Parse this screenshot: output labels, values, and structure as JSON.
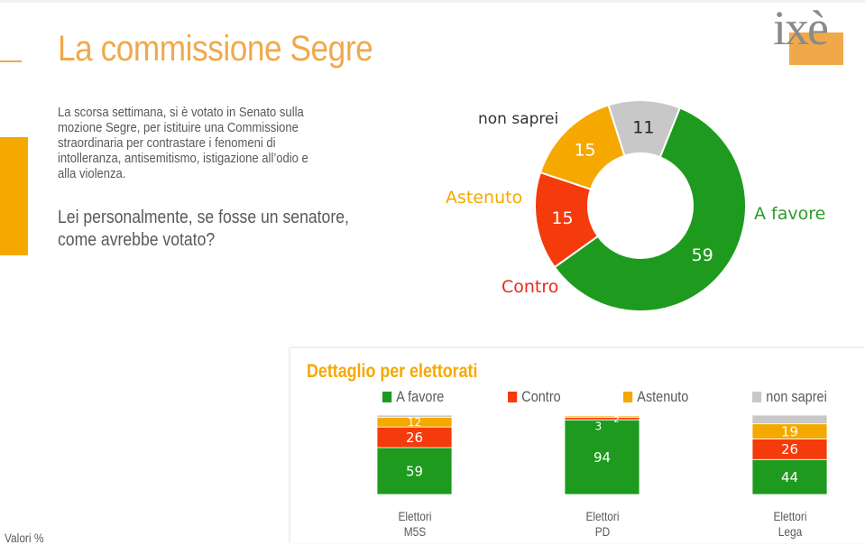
{
  "title": "La commissione Segre",
  "intro": "La scorsa settimana, si è votato in Senato sulla mozione Segre, per istituire una Commissione straordinaria per contrastare i fenomeni di intolleranza, antisemitismo, istigazione all’odio e alla violenza.",
  "question": "Lei personalmente, se fosse un senatore, come avrebbe votato?",
  "logo_text": "ixè",
  "colors": {
    "accent": "#f0a94a",
    "a_favore": "#1e9a1e",
    "contro": "#f53a0c",
    "astenuto": "#f5a800",
    "non_saprei": "#c8c8c8"
  },
  "footnote": "Valori %",
  "chart_data": [
    {
      "type": "pie",
      "donut": true,
      "categories": [
        "A favore",
        "Contro",
        "Astenuto",
        "non saprei"
      ],
      "values": [
        59,
        15,
        15,
        11
      ]
    },
    {
      "type": "bar",
      "stacked": true,
      "title": "Dettaglio per elettorati",
      "categories": [
        "Elettori M5S",
        "Elettori PD",
        "Elettori Lega"
      ],
      "category_lines": [
        [
          "Elettori",
          "M5S"
        ],
        [
          "Elettori",
          "PD"
        ],
        [
          "Elettori",
          "Lega"
        ]
      ],
      "series": [
        {
          "name": "A favore",
          "values": [
            59,
            94,
            44
          ],
          "labels": [
            "59",
            "94",
            "44"
          ]
        },
        {
          "name": "Contro",
          "values": [
            26,
            3,
            26
          ],
          "labels": [
            "26",
            "3",
            "26"
          ]
        },
        {
          "name": "Astenuto",
          "values": [
            12,
            2,
            19
          ],
          "labels": [
            "12",
            "2",
            "19"
          ]
        },
        {
          "name": "non saprei",
          "values": [
            3,
            1,
            11
          ],
          "labels": [
            "",
            "",
            ""
          ]
        }
      ],
      "legend": "top"
    }
  ]
}
